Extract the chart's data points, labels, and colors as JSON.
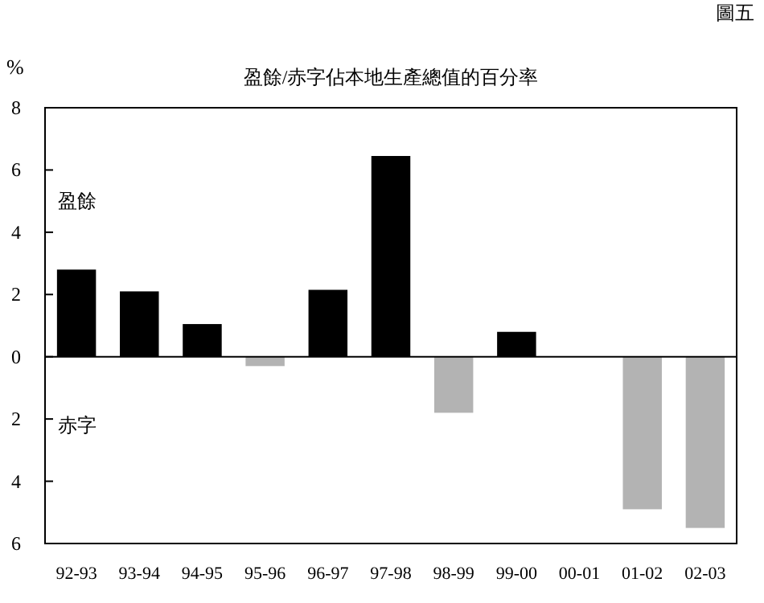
{
  "chart_data": {
    "type": "bar",
    "title": "盈餘/赤字佔本地生產總值的百分率",
    "ylabel": "%",
    "annotations": [
      "圖五",
      "盈餘",
      "赤字"
    ],
    "categories": [
      "92-93",
      "93-94",
      "94-95",
      "95-96",
      "96-97",
      "97-98",
      "98-99",
      "99-00",
      "00-01",
      "01-02",
      "02-03"
    ],
    "values": [
      2.8,
      2.1,
      1.05,
      -0.3,
      2.15,
      6.45,
      -1.8,
      0.8,
      0,
      -4.9,
      -5.5
    ],
    "colors": [
      "#000000",
      "#000000",
      "#000000",
      "#b3b3b3",
      "#000000",
      "#000000",
      "#b3b3b3",
      "#000000",
      "#000000",
      "#b3b3b3",
      "#b3b3b3"
    ],
    "ylim": [
      -6,
      8
    ],
    "yticks": [
      {
        "value": -6,
        "label": "6"
      },
      {
        "value": -4,
        "label": "4"
      },
      {
        "value": -2,
        "label": "2"
      },
      0,
      2,
      4,
      6,
      8
    ]
  }
}
